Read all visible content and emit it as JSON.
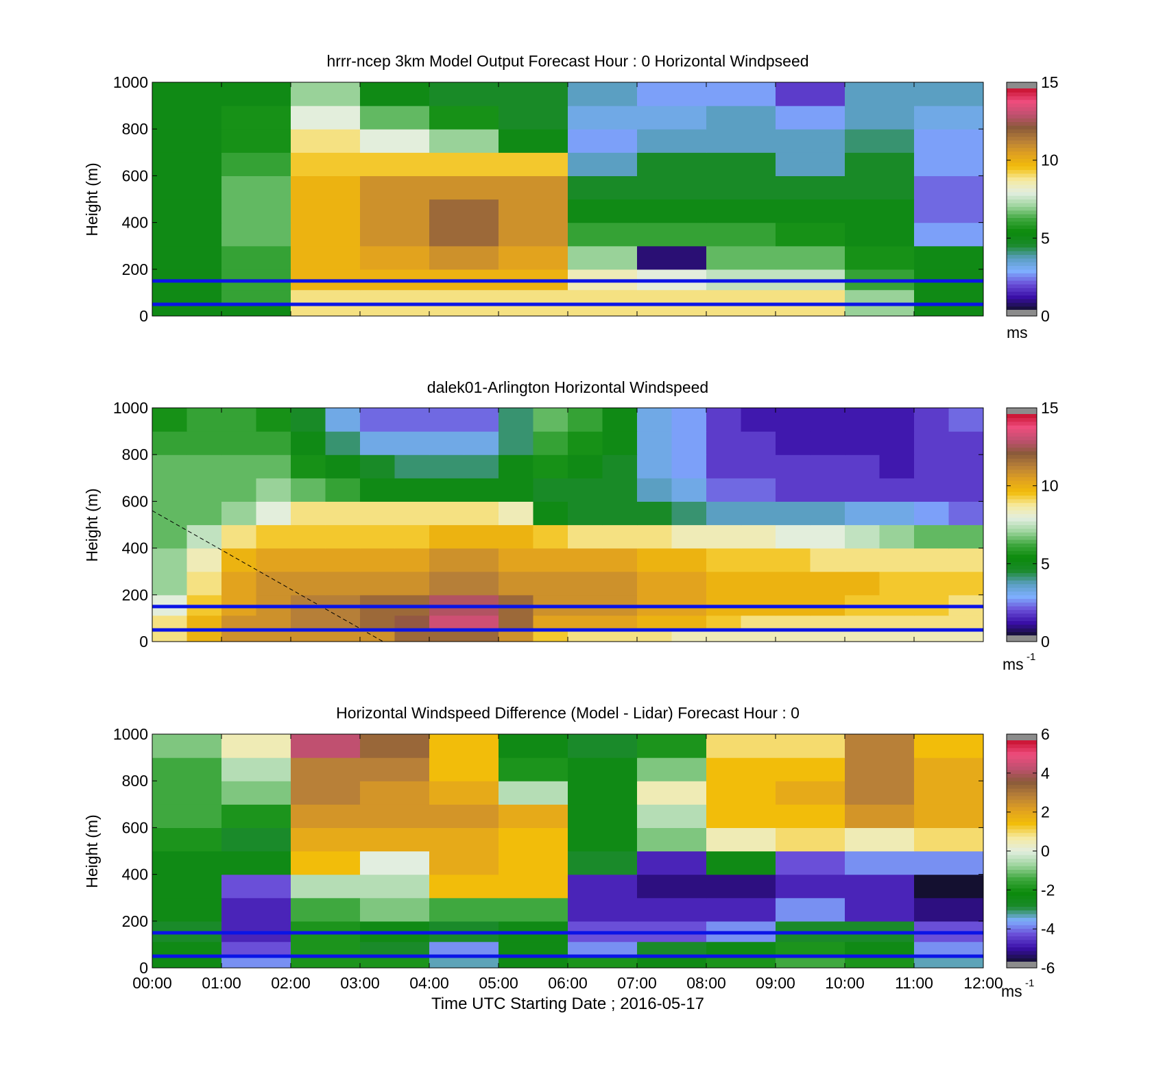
{
  "colors": {
    "windspeed_colormap": [
      "#141030",
      "#3a0fa8",
      "#6a4fd8",
      "#7fb0ff",
      "#5a9ec0",
      "#1a8a2a",
      "#0b8a0b",
      "#3fa83f",
      "#9fd59f",
      "#e2eee0",
      "#f6eaa0",
      "#f2bd0a",
      "#e0a020",
      "#b88038",
      "#8a5a3a",
      "#c05070",
      "#ee4d7d",
      "#c8102e"
    ],
    "difference_colormap": [
      "#141030",
      "#3a0fa8",
      "#6a4fd8",
      "#7fb0ff",
      "#1a8a2a",
      "#0b8a0b",
      "#3fa83f",
      "#9fd59f",
      "#e2eee0",
      "#f6eaa0",
      "#f2bd0a",
      "#e0a020",
      "#b88038",
      "#8a5a3a",
      "#c05070",
      "#ee4d7d",
      "#c8102e"
    ],
    "reference_lines": "#0a14e6",
    "missing": "#8c8c8c"
  },
  "panels": [
    {
      "title": "hrrr-ncep 3km Model Output   Forecast Hour : 0 Horizontal Windpseed",
      "ylabel": "Height (m)",
      "yticks": [
        "1000",
        "800",
        "600",
        "400",
        "200",
        "0"
      ],
      "cbar_ticks": [
        "15",
        "10",
        "5",
        "0"
      ],
      "unit": "ms",
      "unit_sup": ""
    },
    {
      "title": "dalek01-Arlington  Horizontal Windspeed",
      "ylabel": "Height (m)",
      "yticks": [
        "1000",
        "800",
        "600",
        "400",
        "200",
        "0"
      ],
      "cbar_ticks": [
        "15",
        "10",
        "5",
        "0"
      ],
      "unit": "ms",
      "unit_sup": "-1"
    },
    {
      "title": "Horizontal Windspeed Difference (Model - Lidar) Forecast Hour : 0",
      "ylabel": "Height (m)",
      "yticks": [
        "1000",
        "800",
        "600",
        "400",
        "200",
        "0"
      ],
      "cbar_ticks": [
        "6",
        "4",
        "2",
        "0",
        "-2",
        "-4",
        "-6"
      ],
      "unit": "ms",
      "unit_sup": "-1"
    }
  ],
  "xticks": [
    "00:00",
    "01:00",
    "02:00",
    "03:00",
    "04:00",
    "05:00",
    "06:00",
    "07:00",
    "08:00",
    "09:00",
    "10:00",
    "11:00",
    "12:00"
  ],
  "xlabel": "Time UTC  Starting Date ; 2016-05-17",
  "chart_data": [
    {
      "type": "heatmap",
      "title": "hrrr-ncep 3km Model Output   Forecast Hour : 0 Horizontal Windpseed",
      "ylabel": "Height (m)",
      "ylim": [
        0,
        1000
      ],
      "xlim": [
        "00:00",
        "12:00"
      ],
      "clim": [
        0,
        15
      ],
      "colorbar_unit": "ms",
      "reference_lines_m": [
        150,
        50
      ],
      "time_bins": [
        "00:00",
        "01:00",
        "02:00",
        "03:00",
        "04:00",
        "05:00",
        "06:00",
        "07:00",
        "08:00",
        "09:00",
        "10:00",
        "11:00"
      ],
      "height_levels_m": [
        25,
        75,
        150,
        250,
        350,
        450,
        550,
        650,
        750,
        850,
        950
      ],
      "values": [
        [
          5,
          5,
          9,
          9,
          9,
          9,
          9,
          9,
          9,
          9,
          7,
          5
        ],
        [
          5,
          6,
          9,
          9,
          9,
          9,
          9,
          9,
          9,
          9,
          7,
          5
        ],
        [
          5,
          6,
          10,
          10,
          10,
          10,
          8.5,
          8,
          7.5,
          7.5,
          6,
          5
        ],
        [
          5,
          6,
          10,
          10.5,
          11,
          10.5,
          7,
          0.5,
          6.5,
          6.5,
          5.5,
          5
        ],
        [
          5,
          6.5,
          10,
          11,
          12,
          11,
          6,
          6,
          6,
          5.5,
          5,
          2.5
        ],
        [
          5,
          6.5,
          10,
          11,
          12,
          11,
          5,
          5,
          5,
          5,
          5,
          2
        ],
        [
          5,
          6.5,
          10,
          11,
          11,
          11,
          4.5,
          4.5,
          4.5,
          4.5,
          4.5,
          2
        ],
        [
          5,
          6,
          9.5,
          9.5,
          9.5,
          9.5,
          3.5,
          4.5,
          4.5,
          3.5,
          4.5,
          2.5
        ],
        [
          5,
          5.5,
          9,
          8,
          7,
          5,
          2.5,
          3.5,
          3.5,
          3.5,
          4,
          2.5
        ],
        [
          5,
          5.5,
          8,
          6.5,
          5.5,
          4.5,
          3,
          3,
          3.5,
          2.5,
          3.5,
          3
        ],
        [
          5,
          5,
          7,
          5,
          4.5,
          4.5,
          3.5,
          2.5,
          2.5,
          1.5,
          3.5,
          3.5
        ]
      ]
    },
    {
      "type": "heatmap",
      "title": "dalek01-Arlington  Horizontal Windspeed",
      "ylabel": "Height (m)",
      "ylim": [
        0,
        1000
      ],
      "xlim": [
        "00:00",
        "12:00"
      ],
      "clim": [
        0,
        15
      ],
      "colorbar_unit": "ms-1",
      "reference_lines_m": [
        150,
        50
      ],
      "dashed_line": {
        "from": {
          "time": "00:00",
          "height": 560
        },
        "to": {
          "time": "03:20",
          "height": 0
        }
      },
      "time_bins": [
        "00:00",
        "00:30",
        "01:00",
        "01:30",
        "02:00",
        "02:30",
        "03:00",
        "03:30",
        "04:00",
        "04:30",
        "05:00",
        "05:30",
        "06:00",
        "06:30",
        "07:00",
        "07:30",
        "08:00",
        "08:30",
        "09:00",
        "09:30",
        "10:00",
        "10:30",
        "11:00",
        "11:30"
      ],
      "height_levels_m": [
        25,
        75,
        150,
        250,
        350,
        450,
        550,
        650,
        750,
        850,
        950
      ],
      "values": [
        [
          9,
          10,
          11,
          11,
          11,
          11,
          11,
          12,
          12,
          12,
          11,
          9.5,
          9,
          9,
          9,
          8.5,
          8.5,
          8.5,
          8.5,
          8.5,
          8.5,
          8.5,
          8.5,
          8.5
        ],
        [
          9,
          10,
          11,
          11,
          11.5,
          11.5,
          12,
          12.5,
          13.5,
          13.5,
          12,
          10.5,
          10.5,
          10.5,
          10,
          10,
          9.5,
          9,
          9,
          9,
          9,
          9,
          9,
          9
        ],
        [
          8,
          9.5,
          10.5,
          11,
          11.5,
          11.5,
          12,
          12,
          13,
          13,
          12,
          11,
          11,
          11,
          10.5,
          10.5,
          10,
          10,
          10,
          10,
          9.5,
          9.5,
          9.5,
          9
        ],
        [
          7,
          9,
          10.5,
          11,
          11,
          11,
          11,
          11,
          11.5,
          11.5,
          11,
          11,
          11,
          11,
          10.5,
          10.5,
          10,
          10,
          10,
          10,
          10,
          9.5,
          9.5,
          9.5
        ],
        [
          7,
          8.5,
          10,
          10.5,
          10.5,
          10.5,
          10.5,
          10.5,
          11,
          11,
          10.5,
          10.5,
          10.5,
          10.5,
          10,
          10,
          9.5,
          9.5,
          9.5,
          9,
          9,
          9,
          9,
          9
        ],
        [
          6.5,
          7.5,
          9,
          9.5,
          9.5,
          9.5,
          9.5,
          9.5,
          10,
          10,
          10,
          9.5,
          9,
          9,
          9,
          8.5,
          8.5,
          8.5,
          8,
          8,
          7.5,
          7,
          6.5,
          6.5
        ],
        [
          6.5,
          6.5,
          7,
          8,
          9,
          9,
          9,
          9,
          9,
          9,
          8.5,
          5,
          4.5,
          4.5,
          4.5,
          4,
          3.5,
          3.5,
          3.5,
          3.5,
          3,
          3,
          2.5,
          2
        ],
        [
          6.5,
          6.5,
          6.5,
          7,
          6.5,
          6,
          5,
          5,
          5,
          5,
          5,
          4.5,
          4.5,
          4.5,
          3.5,
          3,
          2,
          2,
          1.5,
          1.5,
          1.5,
          1.5,
          1.5,
          1.5
        ],
        [
          6.5,
          6.5,
          6.5,
          6.5,
          5.5,
          5,
          4.5,
          4,
          4,
          4,
          5,
          5.5,
          5,
          4.5,
          3,
          2.5,
          1.5,
          1.5,
          1.5,
          1.5,
          1.5,
          1,
          1.5,
          1.5
        ],
        [
          6,
          6,
          6,
          6,
          5,
          4,
          3,
          3,
          3,
          3,
          4,
          6,
          5.5,
          5,
          3,
          2.5,
          1.5,
          1.5,
          1,
          1,
          1,
          1,
          1.5,
          1.5
        ],
        [
          5.5,
          6,
          6,
          5.5,
          4.5,
          3,
          2,
          2,
          2,
          2,
          4,
          6.5,
          6,
          5,
          3,
          2.5,
          1.5,
          1,
          1,
          1,
          1,
          1,
          1.5,
          2
        ]
      ]
    },
    {
      "type": "heatmap",
      "title": "Horizontal Windspeed Difference (Model - Lidar) Forecast Hour : 0",
      "ylabel": "Height (m)",
      "xlabel": "Time UTC  Starting Date ; 2016-05-17",
      "ylim": [
        0,
        1000
      ],
      "xlim": [
        "00:00",
        "12:00"
      ],
      "clim": [
        -6,
        6
      ],
      "colorbar_unit": "ms-1",
      "reference_lines_m": [
        150,
        50
      ],
      "time_bins": [
        "00:00",
        "01:00",
        "02:00",
        "03:00",
        "04:00",
        "05:00",
        "06:00",
        "07:00",
        "08:00",
        "09:00",
        "10:00",
        "11:00"
      ],
      "height_levels_m": [
        25,
        75,
        150,
        250,
        350,
        450,
        550,
        650,
        750,
        850,
        950
      ],
      "values": [
        [
          -2.5,
          -4,
          -2,
          -2,
          -3.5,
          -2.5,
          -2,
          -2.5,
          -2,
          -1.5,
          -2,
          -3.5
        ],
        [
          -2.5,
          -4.5,
          -2,
          -3,
          -4,
          -2.5,
          -4,
          -3,
          -2.5,
          -2,
          -2.5,
          -4
        ],
        [
          -3,
          -5,
          -2,
          -2.5,
          -3,
          -2.5,
          -4.5,
          -4.5,
          -4,
          -3,
          -3,
          -4.5
        ],
        [
          -2.5,
          -5,
          -1.5,
          -1,
          -1.5,
          -1.5,
          -5,
          -5,
          -5,
          -4,
          -5,
          -5.5
        ],
        [
          -2.5,
          -4.5,
          -0.5,
          -0.5,
          1.5,
          1.5,
          -5,
          -5.5,
          -5.5,
          -5,
          -5,
          -6
        ],
        [
          -2.5,
          -2.5,
          1.5,
          0,
          2,
          1.5,
          -3,
          -5,
          -2.5,
          -4.5,
          -4,
          -4
        ],
        [
          -2,
          -3,
          2,
          2,
          2,
          1.5,
          -2.5,
          -1,
          0.5,
          1,
          0.5,
          1
        ],
        [
          -1.5,
          -2,
          2.5,
          2.5,
          2.5,
          2,
          -2.5,
          -0.5,
          1.5,
          1.5,
          2.5,
          2
        ],
        [
          -1.5,
          -1,
          3,
          2.5,
          2,
          -0.5,
          -2.5,
          0.5,
          1.5,
          2,
          3,
          2
        ],
        [
          -1.5,
          -0.5,
          3,
          3,
          1.5,
          -2,
          -2.5,
          -1,
          1.5,
          1.5,
          3,
          2
        ],
        [
          -1,
          0.5,
          4.5,
          3.5,
          1.5,
          -2.5,
          -3,
          -2,
          1,
          1,
          3,
          1.5
        ]
      ]
    }
  ]
}
